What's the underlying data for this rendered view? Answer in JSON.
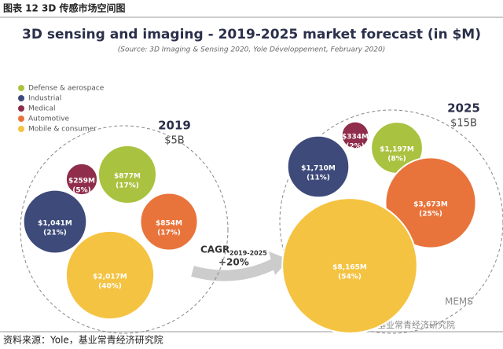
{
  "header": "图表 12 3D 传感市场空间图",
  "title": "3D sensing and imaging - 2019-2025 market forecast (in $M)",
  "source_note": "(Source: 3D Imaging & Sensing 2020, Yole Développement, February 2020)",
  "legend": [
    {
      "name": "Defense & aerospace",
      "color": "#a9c23f"
    },
    {
      "name": "Industrial",
      "color": "#3d4a7a"
    },
    {
      "name": "Medical",
      "color": "#8f2d4a"
    },
    {
      "name": "Automotive",
      "color": "#e8743b"
    },
    {
      "name": "Mobile & consumer",
      "color": "#f5c342"
    }
  ],
  "chart_data": [
    {
      "type": "bubble",
      "year": "2019",
      "total": "$5B",
      "values": [
        877,
        1041,
        259,
        854,
        2017
      ],
      "value_labels": [
        "$877M",
        "$1,041M",
        "$259M",
        "$854M",
        "$2,017M"
      ],
      "shares": [
        17,
        21,
        5,
        17,
        40
      ],
      "share_labels": [
        "(17%)",
        "(21%)",
        "(5%)",
        "(17%)",
        "(40%)"
      ]
    },
    {
      "type": "bubble",
      "year": "2025",
      "total": "$15B",
      "values": [
        1197,
        1710,
        334,
        3673,
        8165
      ],
      "value_labels": [
        "$1,197M",
        "$1,710M",
        "$334M",
        "$3,673M",
        "$8,165M"
      ],
      "shares": [
        8,
        11,
        2,
        25,
        54
      ],
      "share_labels": [
        "(8%)",
        "(11%)",
        "(2%)",
        "(25%)",
        "(54%)"
      ]
    }
  ],
  "cagr": {
    "label": "CAGR",
    "period": "2019-2025",
    "value": "+20%"
  },
  "footer": "资料来源：Yole，基业常青经济研究院",
  "watermark": {
    "brand": "MEMS",
    "account": "基业常青经济研究院"
  }
}
